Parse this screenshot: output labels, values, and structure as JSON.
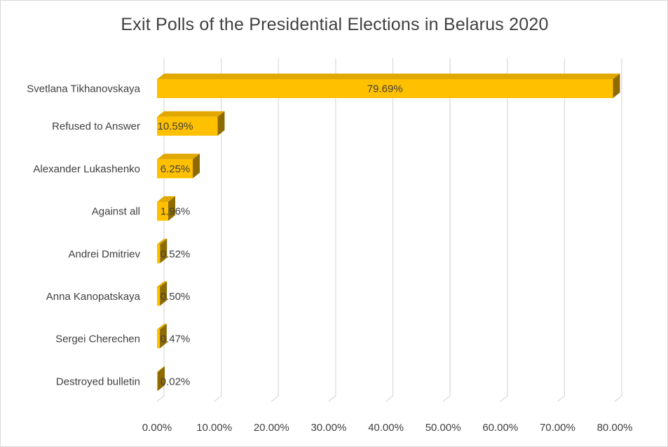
{
  "chart_data": {
    "type": "bar",
    "orientation": "horizontal",
    "style": "3d",
    "title": "Exit Polls of the Presidential Elections in Belarus 2020",
    "categories": [
      "Svetlana Tikhanovskaya",
      "Refused to Answer",
      "Alexander Lukashenko",
      "Against all",
      "Andrei Dmitriev",
      "Anna Kanopatskaya",
      "Sergei Cherechen",
      "Destroyed bulletin"
    ],
    "values": [
      79.69,
      10.59,
      6.25,
      1.96,
      0.52,
      0.5,
      0.47,
      0.02
    ],
    "data_labels": [
      "79.69%",
      "10.59%",
      "6.25%",
      "1.96%",
      "0.52%",
      "0.50%",
      "0.47%",
      "0.02%"
    ],
    "x_ticks": [
      "0.00%",
      "10.00%",
      "20.00%",
      "30.00%",
      "40.00%",
      "50.00%",
      "60.00%",
      "70.00%",
      "80.00%"
    ],
    "xlim": [
      0,
      80
    ],
    "xlabel": "",
    "ylabel": "",
    "grid": true,
    "legend": "none",
    "colors": {
      "bar_front": "#FFC000",
      "bar_top": "#E0A800",
      "bar_side": "#8E6B00",
      "grid": "#d9d9d9",
      "text": "#404040"
    }
  }
}
